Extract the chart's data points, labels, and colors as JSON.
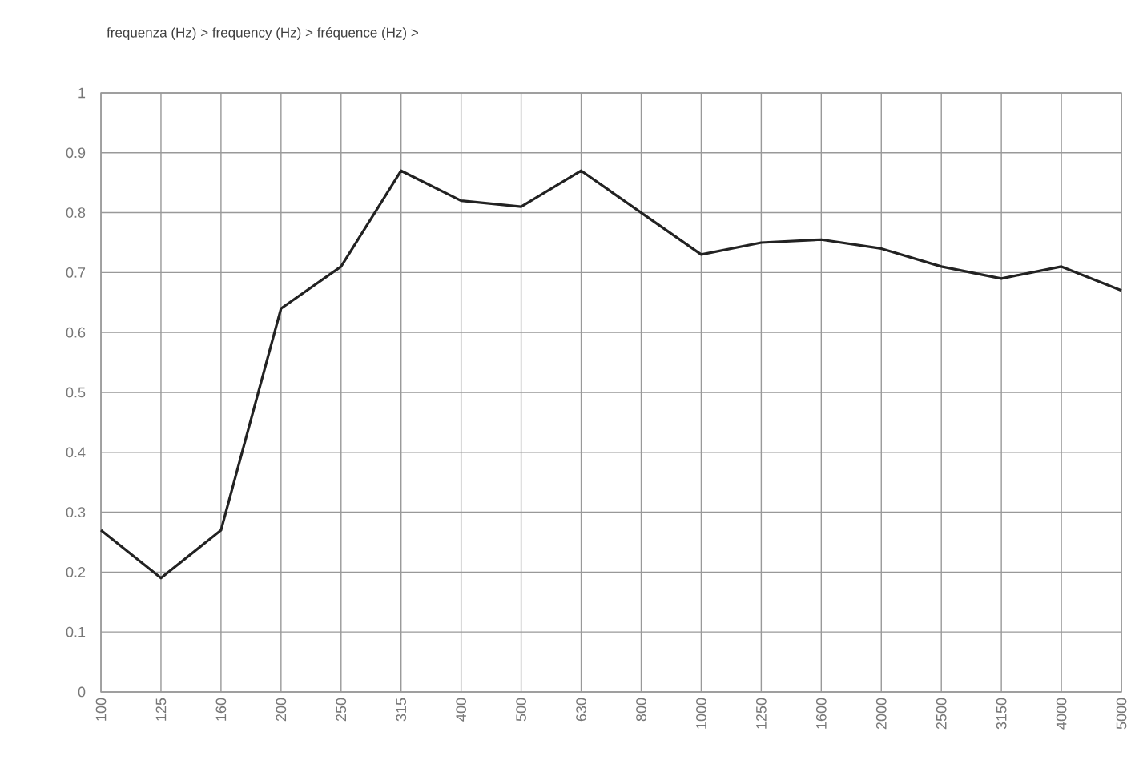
{
  "chart_data": {
    "type": "line",
    "title": "frequenza (Hz) > frequency (Hz) > fréquence (Hz) >",
    "categories": [
      "100",
      "125",
      "160",
      "200",
      "250",
      "315",
      "400",
      "500",
      "630",
      "800",
      "1000",
      "1250",
      "1600",
      "2000",
      "2500",
      "3150",
      "4000",
      "5000"
    ],
    "series": [
      {
        "color": "#222222",
        "values": [
          0.27,
          0.19,
          0.27,
          0.64,
          0.71,
          0.87,
          0.82,
          0.81,
          0.87,
          0.8,
          0.73,
          0.75,
          0.755,
          0.74,
          0.71,
          0.69,
          0.71,
          0.67
        ]
      }
    ],
    "ylim": [
      0,
      1
    ],
    "yticks": [
      0,
      0.1,
      0.2,
      0.3,
      0.4,
      0.5,
      0.6,
      0.7,
      0.8,
      0.9,
      1
    ],
    "grid": true,
    "marker": "none",
    "line_style": "solid"
  }
}
